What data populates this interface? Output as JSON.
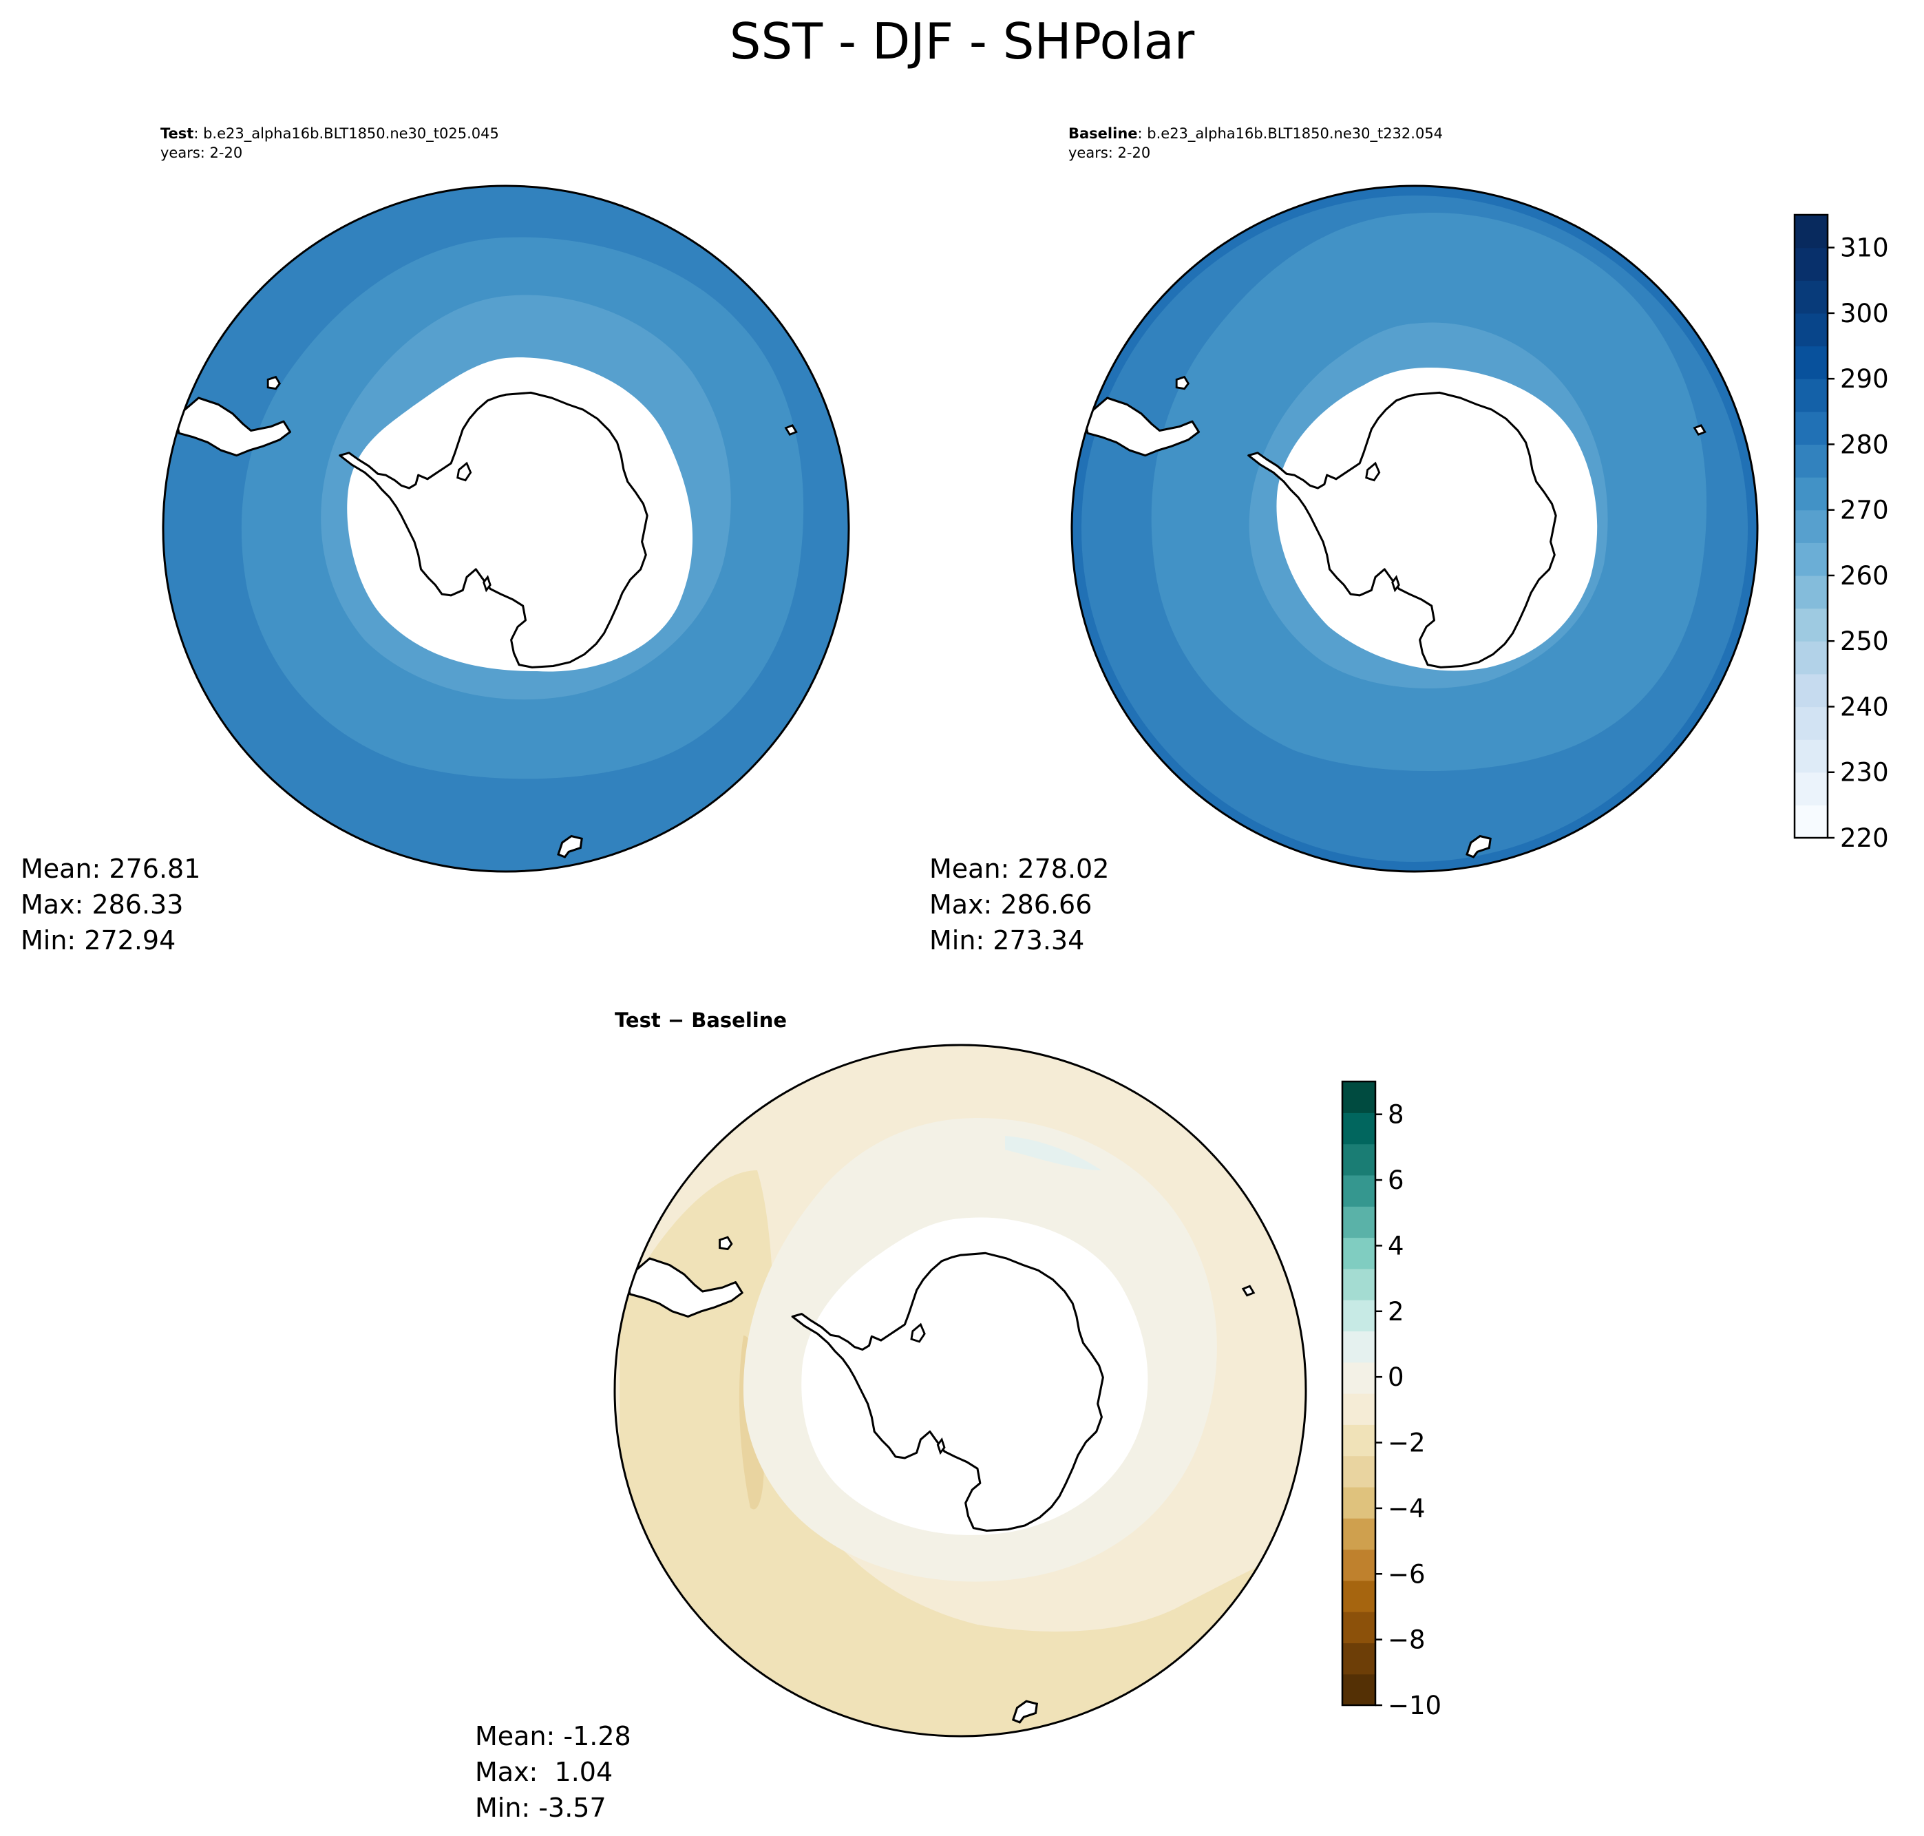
{
  "title": "SST - DJF - SHPolar",
  "panels": [
    {
      "id": "test",
      "label_bold": "Test",
      "label_text": ": b.e23_alpha16b.BLT1850.ne30_t025.045",
      "years": "years: 2-20",
      "stats": {
        "mean": "Mean: 276.81",
        "max": "Max: 286.33",
        "min": "Min: 272.94"
      }
    },
    {
      "id": "baseline",
      "label_bold": "Baseline",
      "label_text": ": b.e23_alpha16b.BLT1850.ne30_t232.054",
      "years": "years: 2-20",
      "stats": {
        "mean": "Mean: 278.02",
        "max": "Max: 286.66",
        "min": "Min: 273.34"
      }
    },
    {
      "id": "difference",
      "label_text": "Test − Baseline",
      "stats": {
        "mean": "Mean: -1.28",
        "max": "Max:  1.04",
        "min": "Min: -3.57"
      }
    }
  ],
  "colorbars": {
    "sst": {
      "min": 220,
      "max": 315,
      "step": 5,
      "ticks": [
        "220",
        "230",
        "240",
        "250",
        "260",
        "270",
        "280",
        "290",
        "300",
        "310"
      ],
      "colors": [
        "#f7fbff",
        "#ebf3fb",
        "#deebf7",
        "#d2e3f3",
        "#c6dbef",
        "#b2d2e8",
        "#9ecae1",
        "#84bcdb",
        "#6baed6",
        "#57a0ce",
        "#4292c6",
        "#3282be",
        "#2171b5",
        "#1461a8",
        "#08519c",
        "#08458a",
        "#083b7a",
        "#08306b",
        "#082a5e"
      ]
    },
    "diff": {
      "min": -10,
      "max": 9,
      "step": 1,
      "ticks": [
        "−10",
        "−8",
        "−6",
        "−4",
        "−2",
        "0",
        "2",
        "4",
        "6",
        "8"
      ],
      "colors": [
        "#543005",
        "#6d3e07",
        "#8c510a",
        "#a6650f",
        "#bf812d",
        "#cfa04e",
        "#dfc27d",
        "#e9d4a0",
        "#f0e2b8",
        "#f5ecd6",
        "#f3f1e6",
        "#e5f1ef",
        "#c7eae5",
        "#a4dcd2",
        "#80cdc1",
        "#5ab2a8",
        "#35978f",
        "#1a7d74",
        "#01665e",
        "#004b40"
      ]
    }
  },
  "map_colors": {
    "sst_outer": "#3282be",
    "sst_mid": "#4292c6",
    "sst_inner": "#57a0ce",
    "sst_edge": "#2171b5",
    "diff_base": "#f0e2b8",
    "diff_mid": "#f5ecd6",
    "diff_near_ice": "#f3f1e6",
    "diff_dark": "#e9d4a0",
    "diff_blue": "#e5f1ef"
  },
  "icons": [
    "antarctica-coastline",
    "south-america-tip",
    "new-zealand-tip",
    "islands"
  ]
}
